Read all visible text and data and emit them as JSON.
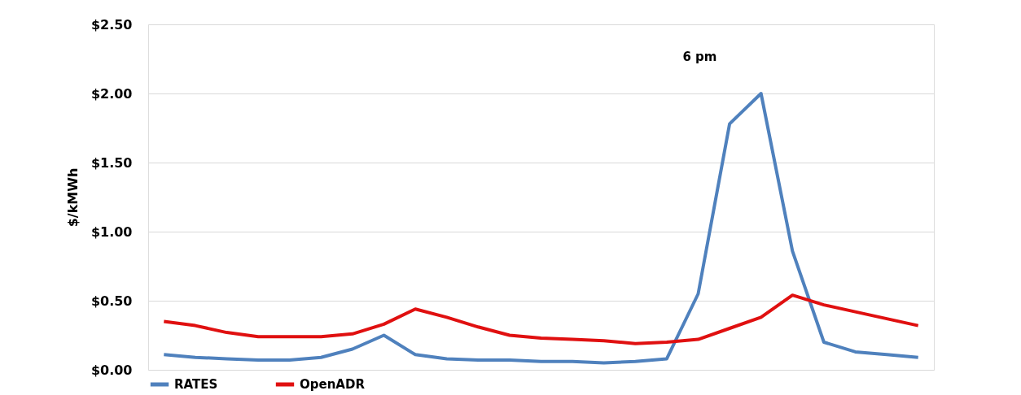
{
  "chart_data": {
    "type": "line",
    "ylabel": "$/kMWh",
    "annotations": [
      "6 pm"
    ],
    "categories": [
      null,
      null,
      null,
      null,
      null,
      null,
      null,
      null,
      null,
      null,
      null,
      null,
      null,
      null,
      null,
      null,
      null,
      null,
      null,
      null,
      null,
      null,
      null,
      null,
      null
    ],
    "series": [
      {
        "name": "RATES",
        "color": "#4f81bd",
        "values": [
          0.11,
          0.09,
          0.08,
          0.07,
          0.07,
          0.09,
          0.15,
          0.25,
          0.11,
          0.08,
          0.07,
          0.07,
          0.06,
          0.06,
          0.05,
          0.06,
          0.08,
          0.55,
          1.78,
          2.0,
          0.86,
          0.2,
          0.13,
          0.11,
          0.09
        ]
      },
      {
        "name": "OpenADR",
        "color": "#e01010",
        "values": [
          0.35,
          0.32,
          0.27,
          0.24,
          0.24,
          0.24,
          0.26,
          0.33,
          0.44,
          0.38,
          0.31,
          0.25,
          0.23,
          0.22,
          0.21,
          0.19,
          0.2,
          0.22,
          0.3,
          0.38,
          0.54,
          0.47,
          0.42,
          0.37,
          0.32
        ]
      }
    ],
    "ylim": [
      0,
      2.5
    ],
    "yticks": [
      {
        "value": 0,
        "label": "$0.00"
      },
      {
        "value": 0.5,
        "label": "$0.50"
      },
      {
        "value": 1,
        "label": "$1.00"
      },
      {
        "value": 1.5,
        "label": "$1.50"
      },
      {
        "value": 2,
        "label": "$2.00"
      },
      {
        "value": 2.5,
        "label": "$2.50"
      }
    ],
    "grid": "y",
    "legend": "bottom",
    "marker": "none",
    "line_style": "solid",
    "tick_labels": "y"
  }
}
